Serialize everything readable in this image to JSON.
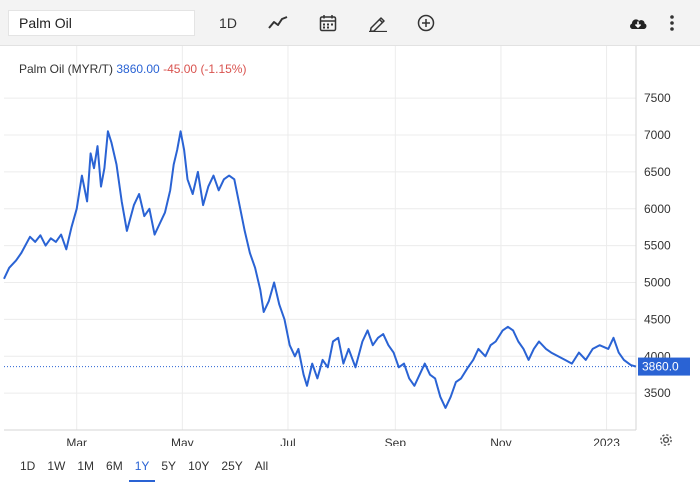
{
  "search": {
    "value": "Palm Oil"
  },
  "toolbar": {
    "period_label": "1D",
    "icons": [
      "line-chart-icon",
      "calendar-icon",
      "pencil-icon",
      "plus-circle-icon",
      "cloud-download-icon",
      "more-vertical-icon"
    ]
  },
  "header": {
    "name": "Palm Oil (MYR/T)",
    "price": "3860.00",
    "change": "-45.00 (-1.15%)"
  },
  "colors": {
    "line": "#2a63d4",
    "negative": "#d9534f",
    "grid": "#ececec",
    "axis": "#d6d6d6",
    "badge": "#2a63d4"
  },
  "ranges": [
    {
      "label": "1D",
      "active": false
    },
    {
      "label": "1W",
      "active": false
    },
    {
      "label": "1M",
      "active": false
    },
    {
      "label": "6M",
      "active": false
    },
    {
      "label": "1Y",
      "active": true
    },
    {
      "label": "5Y",
      "active": false
    },
    {
      "label": "10Y",
      "active": false
    },
    {
      "label": "25Y",
      "active": false
    },
    {
      "label": "All",
      "active": false
    }
  ],
  "chart_data": {
    "type": "line",
    "title": "Palm Oil (MYR/T)",
    "xlabel": "",
    "ylabel": "",
    "ylim": [
      3000,
      7800
    ],
    "xlim": [
      "2022-01-18",
      "2023-01-18"
    ],
    "grid": true,
    "last_value_label": "3860.0",
    "x_ticks": [
      {
        "label": "Mar",
        "date": "2022-03-01"
      },
      {
        "label": "May",
        "date": "2022-05-01"
      },
      {
        "label": "Jul",
        "date": "2022-07-01"
      },
      {
        "label": "Sep",
        "date": "2022-09-01"
      },
      {
        "label": "Nov",
        "date": "2022-11-01"
      },
      {
        "label": "2023",
        "date": "2023-01-01"
      }
    ],
    "y_ticks": [
      3500,
      4000,
      4500,
      5000,
      5500,
      6000,
      6500,
      7000,
      7500
    ],
    "series": [
      {
        "points": [
          [
            "2022-01-18",
            5050
          ],
          [
            "2022-01-21",
            5200
          ],
          [
            "2022-01-25",
            5300
          ],
          [
            "2022-01-28",
            5400
          ],
          [
            "2022-02-02",
            5620
          ],
          [
            "2022-02-05",
            5550
          ],
          [
            "2022-02-08",
            5640
          ],
          [
            "2022-02-11",
            5500
          ],
          [
            "2022-02-14",
            5600
          ],
          [
            "2022-02-17",
            5550
          ],
          [
            "2022-02-20",
            5650
          ],
          [
            "2022-02-23",
            5450
          ],
          [
            "2022-02-26",
            5750
          ],
          [
            "2022-03-01",
            6000
          ],
          [
            "2022-03-04",
            6450
          ],
          [
            "2022-03-07",
            6100
          ],
          [
            "2022-03-09",
            6750
          ],
          [
            "2022-03-11",
            6550
          ],
          [
            "2022-03-13",
            6850
          ],
          [
            "2022-03-15",
            6300
          ],
          [
            "2022-03-17",
            6550
          ],
          [
            "2022-03-19",
            7050
          ],
          [
            "2022-03-21",
            6900
          ],
          [
            "2022-03-24",
            6600
          ],
          [
            "2022-03-27",
            6100
          ],
          [
            "2022-03-30",
            5700
          ],
          [
            "2022-04-03",
            6050
          ],
          [
            "2022-04-06",
            6200
          ],
          [
            "2022-04-09",
            5900
          ],
          [
            "2022-04-12",
            6000
          ],
          [
            "2022-04-15",
            5650
          ],
          [
            "2022-04-18",
            5800
          ],
          [
            "2022-04-21",
            5950
          ],
          [
            "2022-04-24",
            6250
          ],
          [
            "2022-04-26",
            6600
          ],
          [
            "2022-04-28",
            6800
          ],
          [
            "2022-04-30",
            7050
          ],
          [
            "2022-05-02",
            6800
          ],
          [
            "2022-05-04",
            6400
          ],
          [
            "2022-05-07",
            6200
          ],
          [
            "2022-05-10",
            6500
          ],
          [
            "2022-05-13",
            6050
          ],
          [
            "2022-05-16",
            6300
          ],
          [
            "2022-05-19",
            6450
          ],
          [
            "2022-05-22",
            6250
          ],
          [
            "2022-05-25",
            6400
          ],
          [
            "2022-05-28",
            6450
          ],
          [
            "2022-05-31",
            6400
          ],
          [
            "2022-06-03",
            6050
          ],
          [
            "2022-06-06",
            5700
          ],
          [
            "2022-06-09",
            5400
          ],
          [
            "2022-06-12",
            5200
          ],
          [
            "2022-06-15",
            4900
          ],
          [
            "2022-06-17",
            4600
          ],
          [
            "2022-06-20",
            4750
          ],
          [
            "2022-06-23",
            5000
          ],
          [
            "2022-06-26",
            4700
          ],
          [
            "2022-06-29",
            4500
          ],
          [
            "2022-07-02",
            4150
          ],
          [
            "2022-07-05",
            4000
          ],
          [
            "2022-07-07",
            4100
          ],
          [
            "2022-07-10",
            3750
          ],
          [
            "2022-07-12",
            3600
          ],
          [
            "2022-07-15",
            3900
          ],
          [
            "2022-07-18",
            3700
          ],
          [
            "2022-07-21",
            3950
          ],
          [
            "2022-07-24",
            3850
          ],
          [
            "2022-07-27",
            4200
          ],
          [
            "2022-07-30",
            4250
          ],
          [
            "2022-08-02",
            3900
          ],
          [
            "2022-08-05",
            4100
          ],
          [
            "2022-08-09",
            3850
          ],
          [
            "2022-08-13",
            4200
          ],
          [
            "2022-08-16",
            4350
          ],
          [
            "2022-08-19",
            4150
          ],
          [
            "2022-08-22",
            4250
          ],
          [
            "2022-08-25",
            4300
          ],
          [
            "2022-08-28",
            4150
          ],
          [
            "2022-08-31",
            4050
          ],
          [
            "2022-09-03",
            3850
          ],
          [
            "2022-09-06",
            3900
          ],
          [
            "2022-09-09",
            3700
          ],
          [
            "2022-09-12",
            3600
          ],
          [
            "2022-09-15",
            3750
          ],
          [
            "2022-09-18",
            3900
          ],
          [
            "2022-09-21",
            3750
          ],
          [
            "2022-09-24",
            3700
          ],
          [
            "2022-09-27",
            3450
          ],
          [
            "2022-09-30",
            3300
          ],
          [
            "2022-10-03",
            3450
          ],
          [
            "2022-10-06",
            3650
          ],
          [
            "2022-10-09",
            3700
          ],
          [
            "2022-10-13",
            3850
          ],
          [
            "2022-10-16",
            3950
          ],
          [
            "2022-10-19",
            4100
          ],
          [
            "2022-10-23",
            4000
          ],
          [
            "2022-10-26",
            4150
          ],
          [
            "2022-10-29",
            4200
          ],
          [
            "2022-11-02",
            4350
          ],
          [
            "2022-11-05",
            4400
          ],
          [
            "2022-11-08",
            4350
          ],
          [
            "2022-11-11",
            4200
          ],
          [
            "2022-11-14",
            4100
          ],
          [
            "2022-11-17",
            3950
          ],
          [
            "2022-11-20",
            4100
          ],
          [
            "2022-11-23",
            4200
          ],
          [
            "2022-11-27",
            4100
          ],
          [
            "2022-11-30",
            4050
          ],
          [
            "2022-12-04",
            4000
          ],
          [
            "2022-12-08",
            3950
          ],
          [
            "2022-12-12",
            3900
          ],
          [
            "2022-12-16",
            4050
          ],
          [
            "2022-12-20",
            3950
          ],
          [
            "2022-12-24",
            4100
          ],
          [
            "2022-12-28",
            4150
          ],
          [
            "2023-01-02",
            4100
          ],
          [
            "2023-01-05",
            4250
          ],
          [
            "2023-01-08",
            4050
          ],
          [
            "2023-01-11",
            3950
          ],
          [
            "2023-01-15",
            3880
          ],
          [
            "2023-01-18",
            3860
          ]
        ]
      }
    ]
  }
}
